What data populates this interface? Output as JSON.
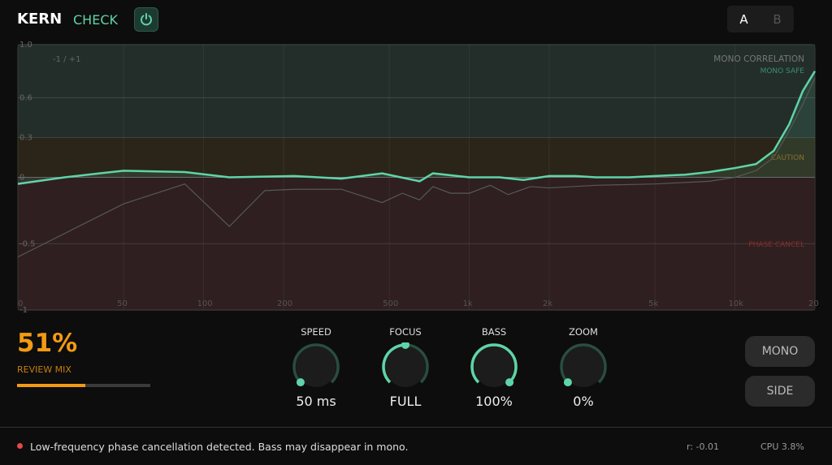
{
  "header": {
    "brand": "KERN",
    "product": "CHECK",
    "power_icon": "power-icon",
    "ab": [
      "A",
      "B"
    ],
    "ab_selected": "A"
  },
  "chart_data": {
    "type": "line",
    "title": "MONO CORRELATION",
    "corner_label": "-1 / +1",
    "x_scale": "log",
    "xlim": [
      20,
      20000
    ],
    "x_ticks": [
      {
        "v": 20,
        "l": "0"
      },
      {
        "v": 50,
        "l": "50"
      },
      {
        "v": 100,
        "l": "100"
      },
      {
        "v": 200,
        "l": "200"
      },
      {
        "v": 500,
        "l": "500"
      },
      {
        "v": 1000,
        "l": "1k"
      },
      {
        "v": 2000,
        "l": "2k"
      },
      {
        "v": 5000,
        "l": "5k"
      },
      {
        "v": 10000,
        "l": "10k"
      },
      {
        "v": 20000,
        "l": "20"
      }
    ],
    "ylim": [
      -1,
      1
    ],
    "y_ticks": [
      {
        "v": 1,
        "l": "1.0"
      },
      {
        "v": 0.6,
        "l": "0.6"
      },
      {
        "v": 0.3,
        "l": "0.3"
      },
      {
        "v": 0,
        "l": "0"
      },
      {
        "v": -0.5,
        "l": "-0.5"
      },
      {
        "v": -1,
        "l": "-1"
      }
    ],
    "zones": [
      {
        "label": "MONO SAFE",
        "from": 0.3,
        "to": 1,
        "color": "#5fd4a8"
      },
      {
        "label": "CAUTION",
        "from": 0,
        "to": 0.3,
        "color": "#c5861c"
      },
      {
        "label": "PHASE CANCEL",
        "from": -1,
        "to": 0,
        "color": "#a33535"
      }
    ],
    "grid": true,
    "series": [
      {
        "color": "#5fd4a8",
        "x": [
          20,
          30,
          50,
          85,
          125,
          220,
          330,
          470,
          650,
          730,
          1000,
          1300,
          1600,
          2000,
          2500,
          3000,
          4000,
          5000,
          6500,
          8000,
          10000,
          12000,
          14000,
          16000,
          18000,
          20000
        ],
        "y": [
          -0.05,
          0,
          0.05,
          0.04,
          0,
          0.01,
          -0.01,
          0.03,
          -0.03,
          0.03,
          0,
          0,
          -0.02,
          0.01,
          0.01,
          0,
          0,
          0.01,
          0.02,
          0.04,
          0.07,
          0.1,
          0.2,
          0.4,
          0.65,
          0.8
        ]
      },
      {
        "color": "#555a55",
        "x": [
          20,
          50,
          85,
          125,
          170,
          220,
          330,
          470,
          560,
          650,
          730,
          850,
          1000,
          1200,
          1400,
          1700,
          2000,
          3000,
          5000,
          8000,
          10000,
          12000,
          14000,
          16000,
          18000,
          20000
        ],
        "y": [
          -0.6,
          -0.2,
          -0.05,
          -0.37,
          -0.1,
          -0.09,
          -0.09,
          -0.19,
          -0.12,
          -0.17,
          -0.07,
          -0.12,
          -0.12,
          -0.06,
          -0.13,
          -0.07,
          -0.08,
          -0.06,
          -0.05,
          -0.03,
          0,
          0.05,
          0.15,
          0.35,
          0.55,
          0.75
        ]
      }
    ]
  },
  "mix": {
    "value": "51%",
    "label": "REVIEW MIX",
    "fraction": 0.51
  },
  "knobs": [
    {
      "label": "SPEED",
      "value": "50 ms",
      "level": 0
    },
    {
      "label": "FOCUS",
      "value": "FULL",
      "level": 0.5
    },
    {
      "label": "BASS",
      "value": "100%",
      "level": 1
    },
    {
      "label": "ZOOM",
      "value": "0%",
      "level": 0
    }
  ],
  "buttons": {
    "mono": "MONO",
    "side": "SIDE"
  },
  "status": {
    "message": "Low-frequency phase cancellation detected. Bass may disappear in mono.",
    "r": "r: -0.01",
    "cpu": "CPU  3.8%",
    "alert_color": "#e54848"
  }
}
